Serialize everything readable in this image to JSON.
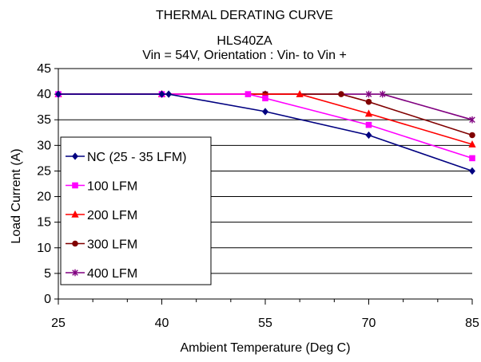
{
  "chart_data": {
    "type": "line",
    "title": "THERMAL DERATING CURVE",
    "subtitle_line1": "HLS40ZA",
    "subtitle_line2": "Vin = 54V, Orientation : Vin- to Vin +",
    "xlabel": "Ambient Temperature (Deg C)",
    "ylabel": "Load Current (A)",
    "xlim": [
      25,
      85
    ],
    "ylim": [
      0,
      45
    ],
    "x_ticks": [
      25,
      40,
      55,
      70,
      85
    ],
    "y_ticks": [
      0,
      5,
      10,
      15,
      20,
      25,
      30,
      35,
      40,
      45
    ],
    "grid": "horizontal",
    "legend_position": "left",
    "series": [
      {
        "name": "NC (25 - 35 LFM)",
        "color": "#000080",
        "marker": "diamond",
        "x": [
          25,
          40,
          41,
          55,
          70,
          85
        ],
        "y": [
          40,
          40,
          40,
          36.6,
          32,
          25
        ]
      },
      {
        "name": "100 LFM",
        "color": "#ff00ff",
        "marker": "square",
        "x": [
          25,
          40,
          52.5,
          55,
          70,
          85
        ],
        "y": [
          40,
          40,
          40,
          39.2,
          34,
          27.5
        ]
      },
      {
        "name": "200 LFM",
        "color": "#ff0000",
        "marker": "triangle",
        "x": [
          25,
          40,
          60,
          70,
          85
        ],
        "y": [
          40,
          40,
          40,
          36.2,
          30.2
        ]
      },
      {
        "name": "300 LFM",
        "color": "#800000",
        "marker": "circle",
        "x": [
          25,
          40,
          55,
          66,
          70,
          85
        ],
        "y": [
          40,
          40,
          40,
          40,
          38.5,
          32
        ]
      },
      {
        "name": "400 LFM",
        "color": "#800080",
        "marker": "star",
        "x": [
          25,
          40,
          55,
          70,
          72,
          85
        ],
        "y": [
          40,
          40,
          40,
          40,
          40,
          35
        ]
      }
    ]
  }
}
